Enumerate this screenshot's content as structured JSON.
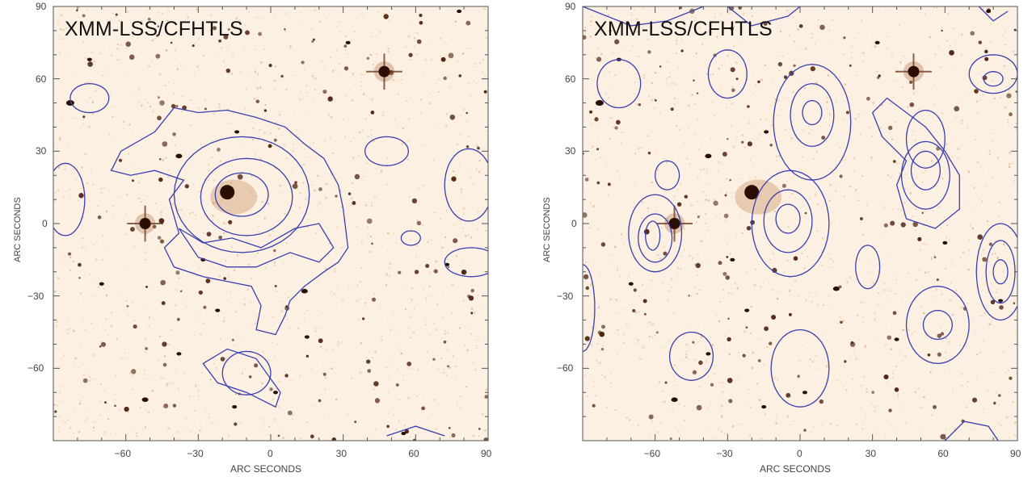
{
  "figure": {
    "panels": [
      {
        "id": "left",
        "title": "XMM-LSS/CFHTLS",
        "xlabel": "ARC SECONDS",
        "ylabel": "ARC SECONDS",
        "x_ticks": [
          "−60",
          "−30",
          "0",
          "30",
          "60",
          "90"
        ],
        "y_ticks": [
          "90",
          "60",
          "30",
          "0",
          "−30",
          "−60"
        ],
        "contour_color": "#3a3fb0"
      },
      {
        "id": "right",
        "title": "XMM-LSS/CFHTLS",
        "xlabel": "ARC SECONDS",
        "ylabel": "ARC SECONDS",
        "x_ticks": [
          "−60",
          "−30",
          "0",
          "30",
          "60",
          "90"
        ],
        "y_ticks": [
          "90",
          "60",
          "30",
          "0",
          "−30",
          "−60"
        ],
        "contour_color": "#3a3fb0"
      }
    ],
    "colors": {
      "background_image": "#fbf0e2",
      "sources": "#3b1607",
      "contours": "#3a3fb0",
      "axes": "#555555"
    }
  }
}
